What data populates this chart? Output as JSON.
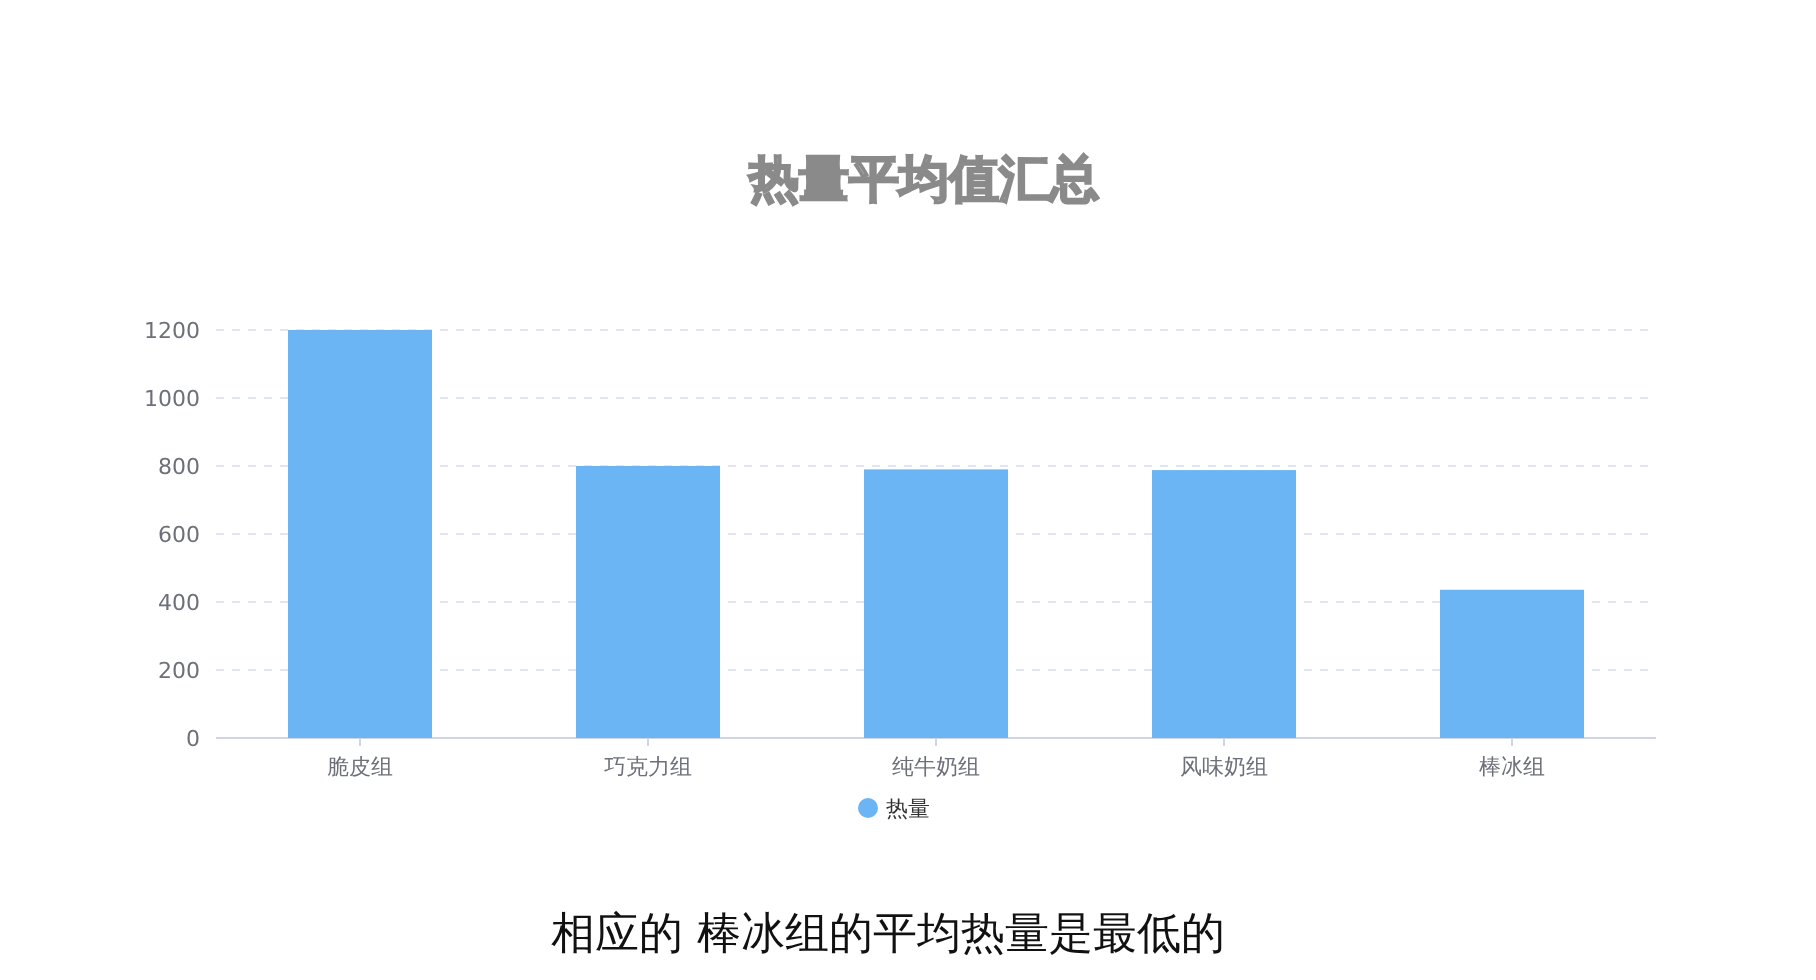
{
  "chart_data": {
    "type": "bar",
    "title": "热量平均值汇总",
    "categories": [
      "脆皮组",
      "巧克力组",
      "纯牛奶组",
      "风味奶组",
      "棒冰组"
    ],
    "series": [
      {
        "name": "热量",
        "color": "#6cb5f5",
        "values": [
          1200,
          800,
          790,
          788,
          436
        ]
      }
    ],
    "ylim": [
      0,
      1200
    ],
    "yticks": [
      0,
      200,
      400,
      600,
      800,
      1000,
      1200
    ],
    "grid": "y",
    "legend": "bottom",
    "annotations": [
      "相应的 棒冰组的平均热量是最低的"
    ]
  }
}
